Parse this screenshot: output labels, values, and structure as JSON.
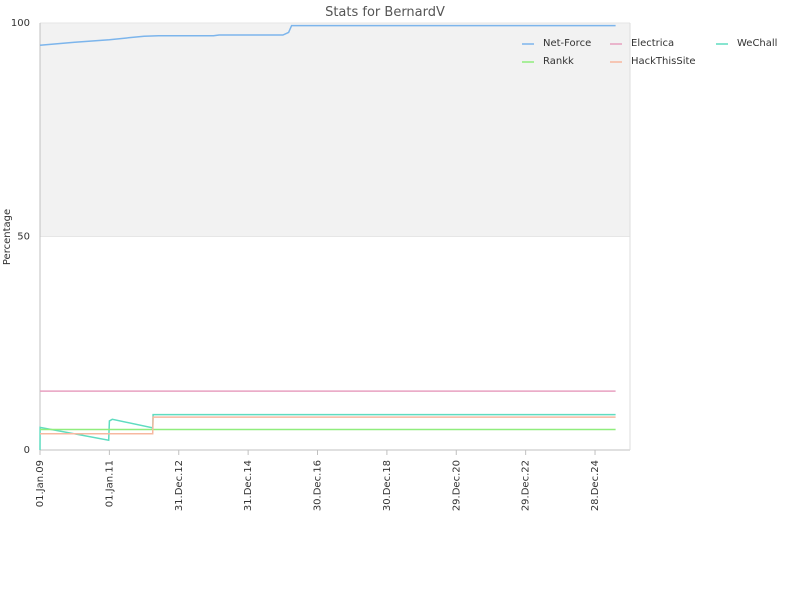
{
  "chart_data": {
    "type": "line",
    "title": "Stats for BernardV",
    "xlabel": "",
    "ylabel": "Percentage",
    "x_range": [
      "2009-01-01",
      "2025-12-31"
    ],
    "ylim": [
      0,
      100
    ],
    "y_ticks": [
      0,
      50,
      100
    ],
    "x_ticks": [
      {
        "date": "2009-01-01",
        "label": "01.Jan.09"
      },
      {
        "date": "2011-01-01",
        "label": "01.Jan.11"
      },
      {
        "date": "2012-12-31",
        "label": "31.Dec.12"
      },
      {
        "date": "2014-12-31",
        "label": "31.Dec.14"
      },
      {
        "date": "2016-12-30",
        "label": "30.Dec.16"
      },
      {
        "date": "2018-12-30",
        "label": "30.Dec.18"
      },
      {
        "date": "2020-12-29",
        "label": "29.Dec.20"
      },
      {
        "date": "2022-12-29",
        "label": "29.Dec.22"
      },
      {
        "date": "2024-12-28",
        "label": "28.Dec.24"
      }
    ],
    "bands": [
      {
        "from": 50,
        "to": 100,
        "color": "#f2f2f2"
      }
    ],
    "grid": true,
    "legend_position": "top-right",
    "series": [
      {
        "name": "Net-Force",
        "color": "#7cb5ec",
        "points": [
          [
            "2009-01-01",
            94.8
          ],
          [
            "2010-01-01",
            95.5
          ],
          [
            "2011-01-01",
            96.1
          ],
          [
            "2012-01-01",
            96.9
          ],
          [
            "2012-06-01",
            97.0
          ],
          [
            "2014-01-01",
            97.0
          ],
          [
            "2014-03-01",
            97.2
          ],
          [
            "2016-01-01",
            97.2
          ],
          [
            "2016-03-01",
            97.8
          ],
          [
            "2016-04-01",
            99.4
          ],
          [
            "2025-08-01",
            99.4
          ]
        ]
      },
      {
        "name": "Electrica",
        "color": "#e8a1c0",
        "points": [
          [
            "2009-01-01",
            13.8
          ],
          [
            "2025-08-01",
            13.8
          ]
        ]
      },
      {
        "name": "WeChall",
        "color": "#5fdcc0",
        "points": [
          [
            "2009-01-01",
            0.0
          ],
          [
            "2009-01-02",
            5.3
          ],
          [
            "2010-12-25",
            2.3
          ],
          [
            "2011-01-01",
            6.8
          ],
          [
            "2011-02-01",
            7.2
          ],
          [
            "2012-04-01",
            5.2
          ],
          [
            "2012-04-05",
            8.3
          ],
          [
            "2025-08-01",
            8.3
          ]
        ]
      },
      {
        "name": "Rankk",
        "color": "#90ed7d",
        "points": [
          [
            "2009-01-01",
            4.8
          ],
          [
            "2025-08-01",
            4.8
          ]
        ]
      },
      {
        "name": "HackThisSite",
        "color": "#f7b8a0",
        "points": [
          [
            "2009-01-01",
            3.8
          ],
          [
            "2011-01-01",
            3.8
          ],
          [
            "2011-01-05",
            3.8
          ],
          [
            "2012-04-01",
            3.8
          ],
          [
            "2012-04-05",
            7.7
          ],
          [
            "2025-08-01",
            7.7
          ]
        ]
      }
    ]
  }
}
